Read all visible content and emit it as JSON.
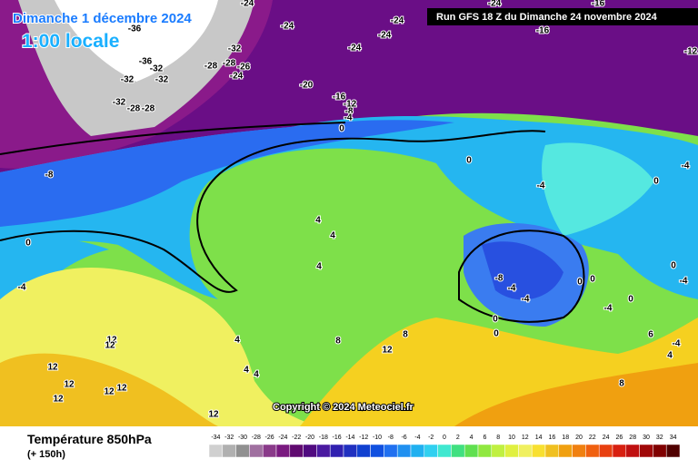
{
  "header": {
    "date": "Dimanche 1 décembre 2024",
    "time": "1:00 locale",
    "run": "Run GFS 18 Z du Dimanche 24 novembre 2024"
  },
  "footer": {
    "variable": "Température 850hPa",
    "lead": "(+ 150h)",
    "copyright": "Copyright © 2024 Meteociel.fr"
  },
  "scale": [
    -34,
    -32,
    -30,
    -28,
    -26,
    -24,
    -22,
    -20,
    -18,
    -16,
    -14,
    -12,
    -10,
    -8,
    -6,
    -4,
    -2,
    0,
    2,
    4,
    6,
    8,
    10,
    12,
    14,
    16,
    18,
    20,
    22,
    24,
    26,
    28,
    30,
    32,
    34
  ],
  "map_labels": [
    -24,
    -24,
    -24,
    -24,
    -24,
    -24,
    -16,
    -16,
    -12,
    -20,
    -16,
    -12,
    -8,
    -4,
    0,
    -32,
    -28,
    -28,
    -24,
    -32,
    -36,
    -32,
    -32,
    -32,
    -28,
    -28,
    -26,
    -36,
    -8,
    0,
    -4,
    -4,
    0,
    -4,
    4,
    4,
    4,
    -8,
    -4,
    -4,
    0,
    0,
    0,
    0,
    -4,
    0,
    0,
    -4,
    4,
    4,
    4,
    8,
    8,
    12,
    12,
    12,
    12,
    12,
    12,
    12,
    12,
    12,
    8,
    -4,
    4,
    6,
    0
  ]
}
